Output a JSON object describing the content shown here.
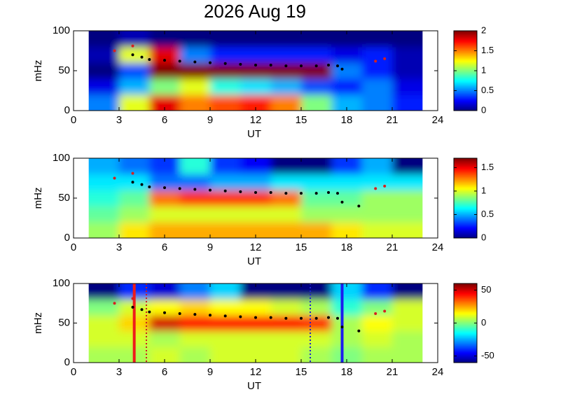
{
  "chart_data": [
    {
      "type": "heatmap",
      "title": "2026 Aug 19",
      "xlabel": "UT",
      "ylabel": "mHz",
      "xlim": [
        0,
        24
      ],
      "xticks": [
        0,
        3,
        6,
        9,
        12,
        15,
        18,
        21,
        24
      ],
      "ylim": [
        0,
        100
      ],
      "yticks": [
        0,
        50,
        100
      ],
      "clim": [
        0,
        2
      ],
      "cticks": [
        0,
        0.5,
        1,
        1.5,
        2
      ],
      "x": [
        2,
        4,
        6,
        8,
        10,
        12,
        14,
        16,
        18,
        20,
        22
      ],
      "y": [
        10,
        30,
        50,
        70,
        90
      ],
      "z": [
        [
          0.5,
          1.2,
          1.8,
          1.5,
          1.6,
          1.7,
          1.5,
          1.0,
          0.6,
          0.5,
          0.3
        ],
        [
          0.2,
          0.6,
          1.0,
          1.2,
          0.8,
          0.7,
          0.6,
          0.4,
          0.3,
          0.5,
          0.2
        ],
        [
          0,
          0.4,
          2,
          2,
          2,
          2,
          2,
          2,
          0.5,
          0.3,
          0.1
        ],
        [
          0.1,
          1.2,
          1.8,
          0.5,
          0.3,
          0.3,
          0.3,
          0.3,
          0.2,
          0.3,
          0.1
        ],
        [
          0,
          0.1,
          0,
          0,
          0,
          0,
          0,
          0,
          0,
          0,
          0
        ]
      ],
      "points": [
        {
          "color": "#000000",
          "x": [
            3.9,
            4.5,
            5,
            6,
            7,
            8,
            9,
            10,
            11,
            12,
            13,
            14,
            15,
            16,
            16.8,
            17.4,
            17.7
          ],
          "y": [
            70,
            67,
            64,
            63,
            62,
            61,
            60,
            59,
            58,
            57,
            57,
            56,
            56,
            56,
            57,
            56,
            52
          ]
        },
        {
          "color": "#d62020",
          "x": [
            2.7,
            3.9,
            19.9,
            20.5
          ],
          "y": [
            75,
            81,
            62,
            65
          ]
        }
      ]
    },
    {
      "type": "heatmap",
      "xlabel": "UT",
      "ylabel": "mHz",
      "xlim": [
        0,
        24
      ],
      "xticks": [
        0,
        3,
        6,
        9,
        12,
        15,
        18,
        21,
        24
      ],
      "ylim": [
        0,
        100
      ],
      "yticks": [
        0,
        50,
        100
      ],
      "clim": [
        0,
        1.7
      ],
      "cticks": [
        0,
        0.5,
        1,
        1.5
      ],
      "x": [
        2,
        4,
        6,
        8,
        10,
        12,
        14,
        16,
        18,
        20,
        22
      ],
      "y": [
        10,
        30,
        50,
        70,
        90
      ],
      "z": [
        [
          0.9,
          1.1,
          1.2,
          1.2,
          1.2,
          1.2,
          1.2,
          1.2,
          1.1,
          1.0,
          1.0
        ],
        [
          0.8,
          0.9,
          1.0,
          1.0,
          1.0,
          1.0,
          1.0,
          0.9,
          0.9,
          0.9,
          0.9
        ],
        [
          0.7,
          0.8,
          1.3,
          1.4,
          1.4,
          1.4,
          1.3,
          0.8,
          0.8,
          0.9,
          0.9
        ],
        [
          0.6,
          0.6,
          0.4,
          0.4,
          0.5,
          0.5,
          0.6,
          0.6,
          0.6,
          0.6,
          0.6
        ],
        [
          0.5,
          0.4,
          0.3,
          0.7,
          0.3,
          0.2,
          0,
          0,
          0.3,
          0.5,
          0
        ]
      ],
      "points": [
        {
          "color": "#000000",
          "x": [
            3.9,
            4.5,
            5,
            6,
            7,
            8,
            9,
            10,
            11,
            12,
            13,
            14,
            15,
            16,
            16.8,
            17.4,
            17.7,
            18.8
          ],
          "y": [
            70,
            67,
            64,
            63,
            62,
            61,
            60,
            59,
            58,
            57,
            57,
            56,
            56,
            56,
            57,
            56,
            45,
            40
          ]
        },
        {
          "color": "#d62020",
          "x": [
            2.7,
            3.9,
            19.9,
            20.5
          ],
          "y": [
            75,
            81,
            62,
            65
          ]
        }
      ]
    },
    {
      "type": "heatmap",
      "xlabel": "UT",
      "ylabel": "mHz",
      "xlim": [
        0,
        24
      ],
      "xticks": [
        0,
        3,
        6,
        9,
        12,
        15,
        18,
        21,
        24
      ],
      "ylim": [
        0,
        100
      ],
      "yticks": [
        0,
        50,
        100
      ],
      "clim": [
        -60,
        60
      ],
      "cticks": [
        -50,
        0,
        50
      ],
      "x": [
        2,
        4,
        6,
        8,
        10,
        12,
        14,
        16,
        18,
        20,
        22
      ],
      "y": [
        10,
        30,
        50,
        70,
        90
      ],
      "z": [
        [
          5,
          5,
          10,
          5,
          10,
          10,
          10,
          5,
          0,
          5,
          5
        ],
        [
          10,
          10,
          5,
          10,
          10,
          10,
          10,
          10,
          5,
          10,
          5
        ],
        [
          10,
          20,
          50,
          45,
          45,
          45,
          45,
          40,
          5,
          15,
          10
        ],
        [
          0,
          10,
          15,
          20,
          15,
          15,
          10,
          5,
          -10,
          0,
          10
        ],
        [
          -60,
          -40,
          -50,
          -30,
          -20,
          -60,
          -60,
          -60,
          -20,
          -40,
          -60
        ]
      ],
      "points": [
        {
          "color": "#000000",
          "x": [
            3.9,
            4.5,
            5,
            6,
            7,
            8,
            9,
            10,
            11,
            12,
            13,
            14,
            15,
            16,
            16.8,
            17.4,
            17.7,
            18.8
          ],
          "y": [
            70,
            67,
            64,
            63,
            62,
            61,
            60,
            59,
            58,
            57,
            57,
            56,
            56,
            56,
            57,
            56,
            45,
            40
          ]
        },
        {
          "color": "#d62020",
          "x": [
            2.7,
            3.9,
            19.9,
            20.5
          ],
          "y": [
            75,
            81,
            62,
            65
          ]
        }
      ],
      "vlines": [
        {
          "x": 4,
          "color": "#ee1c1c",
          "dashed": false
        },
        {
          "x": 4.8,
          "color": "#cc2020",
          "dashed": true
        },
        {
          "x": 15.6,
          "color": "#2020cc",
          "dashed": true
        },
        {
          "x": 17.7,
          "color": "#1c1cee",
          "dashed": false
        }
      ]
    }
  ]
}
